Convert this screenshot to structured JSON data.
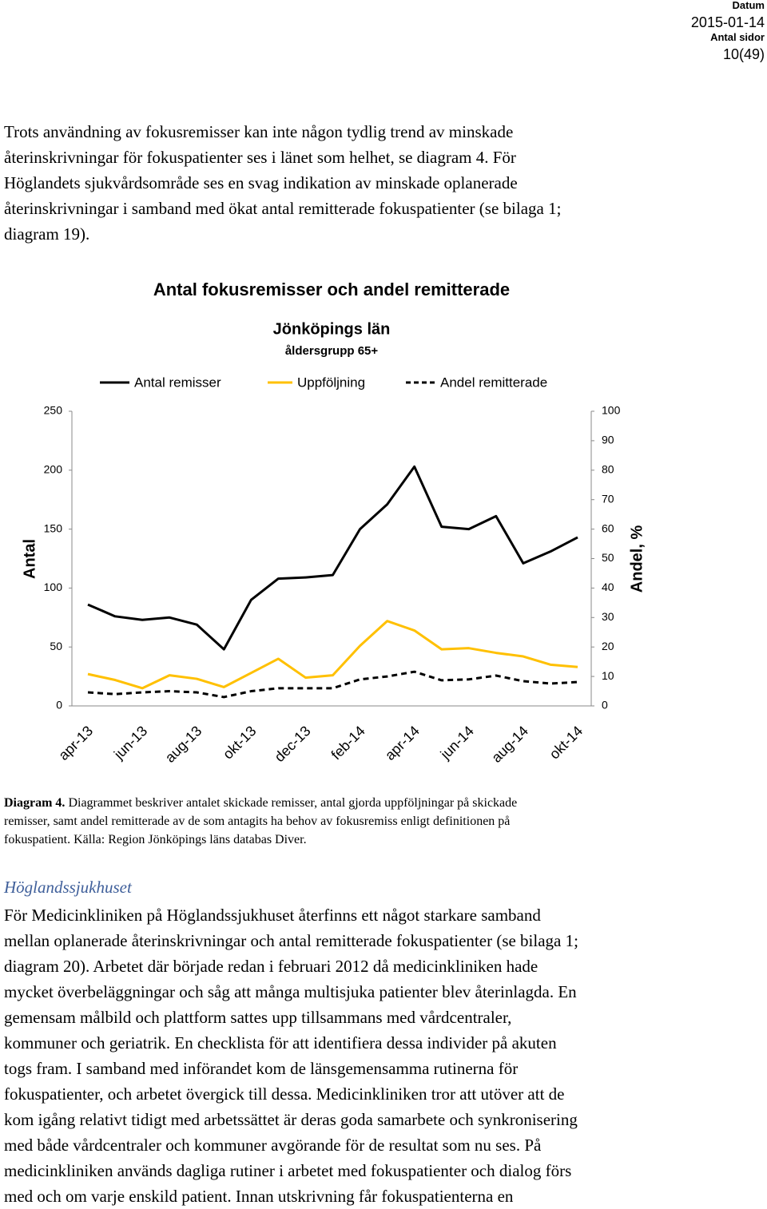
{
  "header": {
    "date_label": "Datum",
    "date": "2015-01-14",
    "pages_label": "Antal sidor",
    "pages": "10(49)"
  },
  "intro": [
    "Trots användning av fokusremisser kan inte någon tydlig trend av minskade",
    "återinskrivningar för fokuspatienter ses i länet som helhet, se diagram 4. För",
    "Höglandets sjukvårdsområde ses en svag indikation av minskade oplanerade",
    "återinskrivningar i samband med ökat antal remitterade fokuspatienter (se bilaga 1;",
    "diagram 19)."
  ],
  "chart_data": {
    "type": "line",
    "title": "Antal fokusremisser och andel remitterade",
    "subtitle": "Jönköpings län",
    "subtitle2": "åldersgrupp 65+",
    "categories": [
      "apr-13",
      null,
      "jun-13",
      null,
      "aug-13",
      null,
      "okt-13",
      null,
      "dec-13",
      null,
      "feb-14",
      null,
      "apr-14",
      null,
      "jun-14",
      null,
      "aug-14",
      null,
      "okt-14"
    ],
    "series": [
      {
        "name": "Antal remisser",
        "color": "#000000",
        "dashed": false,
        "values": [
          86,
          76,
          73,
          75,
          69,
          48,
          90,
          108,
          109,
          111,
          150,
          171,
          203,
          152,
          150,
          161,
          121,
          131,
          143
        ]
      },
      {
        "name": "Uppföljning",
        "color": "#ffc000",
        "dashed": false,
        "values": [
          27,
          22,
          15,
          26,
          23,
          16,
          28,
          40,
          24,
          26,
          51,
          72,
          64,
          48,
          49,
          45,
          42,
          35,
          33
        ]
      },
      {
        "name": "Andel remitterade",
        "color": "#000000",
        "dashed": true,
        "axis": "y2",
        "values": [
          4.6,
          4,
          4.6,
          5,
          4.6,
          3,
          5,
          6,
          6,
          6,
          9,
          10,
          11.6,
          8.7,
          9,
          10.3,
          8.4,
          7.6,
          8.1
        ]
      }
    ],
    "ylabel": "Antal",
    "y2label": "Andel, %",
    "ylim": [
      0,
      250
    ],
    "yticks": [
      0,
      50,
      100,
      150,
      200,
      250
    ],
    "y2lim": [
      0,
      100
    ],
    "y2ticks": [
      0,
      10,
      20,
      30,
      40,
      50,
      60,
      70,
      80,
      90,
      100
    ],
    "grid": false,
    "legend": "top"
  },
  "caption": {
    "label": "Diagram 4.",
    "lines": [
      " Diagrammet beskriver antalet skickade remisser, antal gjorda uppföljningar på skickade",
      "remisser, samt andel remitterade av de som antagits ha behov av fokusremiss enligt definitionen på",
      "fokuspatient. Källa: Region Jönköpings läns databas Diver."
    ]
  },
  "section": {
    "heading": "Höglandssjukhuset",
    "lines": [
      "För Medicinkliniken på Höglandssjukhuset återfinns ett något starkare samband",
      "mellan oplanerade återinskrivningar och antal remitterade fokuspatienter (se bilaga 1;",
      "diagram 20). Arbetet där började redan i februari 2012 då medicinkliniken hade",
      "mycket överbeläggningar och såg att många multisjuka patienter blev återinlagda. En",
      "gemensam målbild och plattform sattes upp tillsammans med vårdcentraler,",
      "kommuner och geriatrik. En checklista för att identifiera dessa individer på akuten",
      "togs fram. I samband med införandet kom de länsgemensamma rutinerna för",
      "fokuspatienter, och arbetet övergick till dessa. Medicinkliniken tror att utöver att de",
      "kom igång relativt tidigt med arbetssättet är deras goda samarbete och synkronisering",
      "med både vårdcentraler och kommuner avgörande för de resultat som nu ses. På",
      "medicinkliniken används dagliga rutiner i arbetet med fokuspatienter och dialog förs",
      "med och om varje enskild patient. Innan utskrivning får fokuspatienterna en"
    ]
  }
}
